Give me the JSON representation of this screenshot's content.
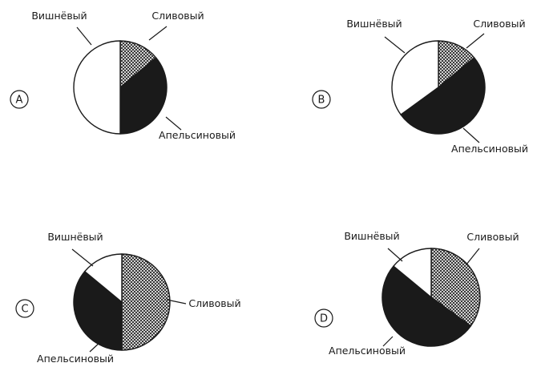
{
  "colors": {
    "background": "#ffffff",
    "outline": "#1a1a1a",
    "fill_dark": "#1a1a1a",
    "fill_white": "#ffffff"
  },
  "chart_data": [
    {
      "type": "pie",
      "option_label": "A",
      "slices": [
        {
          "label": "Сливовый",
          "value": 14,
          "fill": "crosshatch"
        },
        {
          "label": "Апельсиновый",
          "value": 36,
          "fill": "black"
        },
        {
          "label": "Вишнёвый",
          "value": 50,
          "fill": "white"
        }
      ]
    },
    {
      "type": "pie",
      "option_label": "B",
      "slices": [
        {
          "label": "Сливовый",
          "value": 14,
          "fill": "crosshatch"
        },
        {
          "label": "Апельсиновый",
          "value": 51,
          "fill": "black"
        },
        {
          "label": "Вишнёвый",
          "value": 35,
          "fill": "white"
        }
      ]
    },
    {
      "type": "pie",
      "option_label": "C",
      "slices": [
        {
          "label": "Сливовый",
          "value": 50,
          "fill": "crosshatch"
        },
        {
          "label": "Апельсиновый",
          "value": 36,
          "fill": "black"
        },
        {
          "label": "Вишнёвый",
          "value": 14,
          "fill": "white"
        }
      ]
    },
    {
      "type": "pie",
      "option_label": "D",
      "slices": [
        {
          "label": "Сливовый",
          "value": 35,
          "fill": "crosshatch"
        },
        {
          "label": "Апельсиновый",
          "value": 51,
          "fill": "black"
        },
        {
          "label": "Вишнёвый",
          "value": 14,
          "fill": "white"
        }
      ]
    }
  ]
}
